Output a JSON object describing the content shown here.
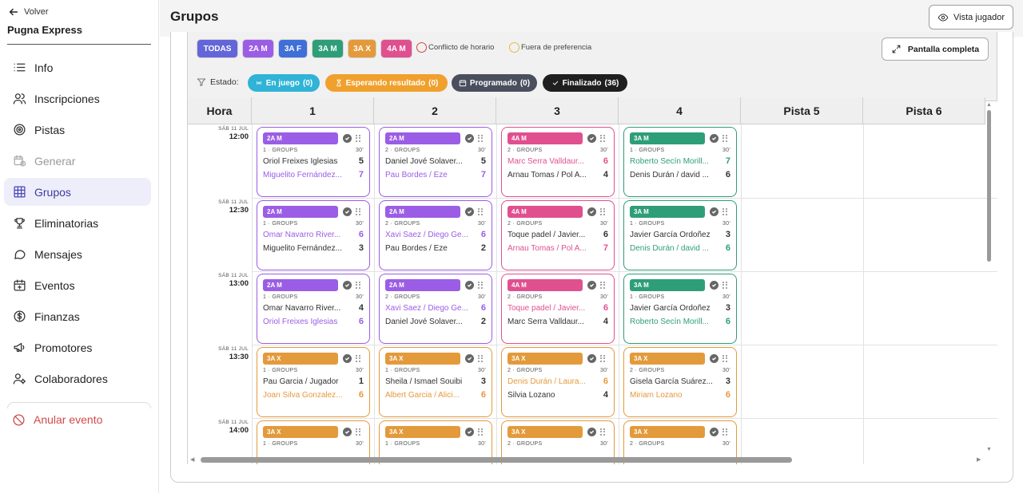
{
  "sidebar": {
    "back_label": "Volver",
    "event_name": "Pugna Express",
    "items": [
      {
        "label": "Info",
        "icon": "list-icon",
        "name": "sidebar-item-info",
        "state": "normal"
      },
      {
        "label": "Inscripciones",
        "icon": "users-icon",
        "name": "sidebar-item-inscripciones",
        "state": "normal"
      },
      {
        "label": "Pistas",
        "icon": "target-icon",
        "name": "sidebar-item-pistas",
        "state": "normal"
      },
      {
        "label": "Generar",
        "icon": "calendar-clock-icon",
        "name": "sidebar-item-generar",
        "state": "disabled"
      },
      {
        "label": "Grupos",
        "icon": "grid-icon",
        "name": "sidebar-item-grupos",
        "state": "active"
      },
      {
        "label": "Eliminatorias",
        "icon": "trophy-icon",
        "name": "sidebar-item-eliminatorias",
        "state": "normal"
      },
      {
        "label": "Mensajes",
        "icon": "chat-icon",
        "name": "sidebar-item-mensajes",
        "state": "normal"
      },
      {
        "label": "Eventos",
        "icon": "calendar-plus-icon",
        "name": "sidebar-item-eventos",
        "state": "normal"
      },
      {
        "label": "Finanzas",
        "icon": "dollar-icon",
        "name": "sidebar-item-finanzas",
        "state": "normal"
      },
      {
        "label": "Promotores",
        "icon": "megaphone-icon",
        "name": "sidebar-item-promotores",
        "state": "normal"
      },
      {
        "label": "Colaboradores",
        "icon": "user-settings-icon",
        "name": "sidebar-item-colaboradores",
        "state": "normal"
      }
    ],
    "cancel_label": "Anular evento"
  },
  "header": {
    "title": "Grupos",
    "view_player_label": "Vista jugador"
  },
  "toolbar": {
    "categories": [
      {
        "label": "TODAS",
        "color": "#6366d9"
      },
      {
        "label": "2A M",
        "color": "#9b5de5"
      },
      {
        "label": "3A F",
        "color": "#3f6fd8"
      },
      {
        "label": "3A M",
        "color": "#2e9e78"
      },
      {
        "label": "3A X",
        "color": "#e39a3b"
      },
      {
        "label": "4A M",
        "color": "#e0508f"
      }
    ],
    "legend_conflict": "Conflicto de horario",
    "legend_conflict_color": "#d64545",
    "legend_preference": "Fuera de preferencia",
    "legend_preference_color": "#e8b64a",
    "fullscreen_label": "Pantalla completa",
    "estado_label": "Estado:",
    "status_filters": [
      {
        "label": "En juego",
        "count": "(0)",
        "bg": "#2fb3d6",
        "fg": "#ffffff",
        "icon": "radio-icon"
      },
      {
        "label": "Esperando resultado",
        "count": "(0)",
        "bg": "#f0a02c",
        "fg": "#ffffff",
        "icon": "hourglass-icon"
      },
      {
        "label": "Programado",
        "count": "(0)",
        "bg": "#4a4f5e",
        "fg": "#ffffff",
        "icon": "calendar-icon"
      },
      {
        "label": "Finalizado",
        "count": "(36)",
        "bg": "#1f1f1f",
        "fg": "#ffffff",
        "icon": "check-icon"
      }
    ]
  },
  "grid": {
    "hour_header": "Hora",
    "courts": [
      "1",
      "2",
      "3",
      "4",
      "Pista 5",
      "Pista 6"
    ],
    "slots": [
      {
        "day": "SÁB 11 JUL",
        "time": "12:00"
      },
      {
        "day": "SÁB 11 JUL",
        "time": "12:30"
      },
      {
        "day": "SÁB 11 JUL",
        "time": "13:00"
      },
      {
        "day": "SÁB 11 JUL",
        "time": "13:30"
      },
      {
        "day": "SÁB 11 JUL",
        "time": "14:00"
      }
    ],
    "matches": [
      {
        "slot": 0,
        "court": 0,
        "category": "2A M",
        "color": "#9b5de5",
        "group": "1 · GROUPS",
        "duration": "30'",
        "t1": "Oriol Freixes Iglesias",
        "s1": "5",
        "t2": "Miguelito Fernández...",
        "s2": "7",
        "winner": 2
      },
      {
        "slot": 0,
        "court": 1,
        "category": "2A M",
        "color": "#9b5de5",
        "group": "2 · GROUPS",
        "duration": "30'",
        "t1": "Daniel Jové Solaver...",
        "s1": "5",
        "t2": "Pau Bordes / Eze",
        "s2": "7",
        "winner": 2
      },
      {
        "slot": 0,
        "court": 2,
        "category": "4A M",
        "color": "#e0508f",
        "group": "2 · GROUPS",
        "duration": "30'",
        "t1": "Marc Serra Valldaur...",
        "s1": "6",
        "t2": "Arnau Tomas / Pol A...",
        "s2": "4",
        "winner": 1
      },
      {
        "slot": 0,
        "court": 3,
        "category": "3A M",
        "color": "#2e9e78",
        "group": "1 · GROUPS",
        "duration": "30'",
        "t1": "Roberto Secín Morill...",
        "s1": "7",
        "t2": "Denis Durán / david ...",
        "s2": "6",
        "winner": 1
      },
      {
        "slot": 1,
        "court": 0,
        "category": "2A M",
        "color": "#9b5de5",
        "group": "1 · GROUPS",
        "duration": "30'",
        "t1": "Omar Navarro River...",
        "s1": "6",
        "t2": "Miguelito Fernández...",
        "s2": "3",
        "winner": 1
      },
      {
        "slot": 1,
        "court": 1,
        "category": "2A M",
        "color": "#9b5de5",
        "group": "2 · GROUPS",
        "duration": "30'",
        "t1": "Xavi Saez / Diego Ge...",
        "s1": "6",
        "t2": "Pau Bordes / Eze",
        "s2": "2",
        "winner": 1
      },
      {
        "slot": 1,
        "court": 2,
        "category": "4A M",
        "color": "#e0508f",
        "group": "2 · GROUPS",
        "duration": "30'",
        "t1": "Toque padel / Javier...",
        "s1": "6",
        "t2": "Arnau Tomas / Pol A...",
        "s2": "7",
        "winner": 2
      },
      {
        "slot": 1,
        "court": 3,
        "category": "3A M",
        "color": "#2e9e78",
        "group": "1 · GROUPS",
        "duration": "30'",
        "t1": "Javier García Ordoñez",
        "s1": "3",
        "t2": "Denis Durán / david ...",
        "s2": "6",
        "winner": 2
      },
      {
        "slot": 2,
        "court": 0,
        "category": "2A M",
        "color": "#9b5de5",
        "group": "1 · GROUPS",
        "duration": "30'",
        "t1": "Omar Navarro River...",
        "s1": "4",
        "t2": "Oriol Freixes Iglesias",
        "s2": "6",
        "winner": 2
      },
      {
        "slot": 2,
        "court": 1,
        "category": "2A M",
        "color": "#9b5de5",
        "group": "2 · GROUPS",
        "duration": "30'",
        "t1": "Xavi Saez / Diego Ge...",
        "s1": "6",
        "t2": "Daniel Jové Solaver...",
        "s2": "2",
        "winner": 1
      },
      {
        "slot": 2,
        "court": 2,
        "category": "4A M",
        "color": "#e0508f",
        "group": "2 · GROUPS",
        "duration": "30'",
        "t1": "Toque padel / Javier...",
        "s1": "6",
        "t2": "Marc Serra Valldaur...",
        "s2": "4",
        "winner": 1
      },
      {
        "slot": 2,
        "court": 3,
        "category": "3A M",
        "color": "#2e9e78",
        "group": "1 · GROUPS",
        "duration": "30'",
        "t1": "Javier García Ordoñez",
        "s1": "3",
        "t2": "Roberto Secín Morill...",
        "s2": "6",
        "winner": 2
      },
      {
        "slot": 3,
        "court": 0,
        "category": "3A X",
        "color": "#e39a3b",
        "group": "1 · GROUPS",
        "duration": "30'",
        "t1": "Pau Garcia / Jugador",
        "s1": "1",
        "t2": "Joan Silva Gonzalez...",
        "s2": "6",
        "winner": 2
      },
      {
        "slot": 3,
        "court": 1,
        "category": "3A X",
        "color": "#e39a3b",
        "group": "1 · GROUPS",
        "duration": "30'",
        "t1": "Sheila / Ismael Souibi",
        "s1": "3",
        "t2": "Albert Garcia / Alici...",
        "s2": "6",
        "winner": 2
      },
      {
        "slot": 3,
        "court": 2,
        "category": "3A X",
        "color": "#e39a3b",
        "group": "2 · GROUPS",
        "duration": "30'",
        "t1": "Denis Durán / Laura...",
        "s1": "6",
        "t2": "Silvia Lozano",
        "s2": "4",
        "winner": 1
      },
      {
        "slot": 3,
        "court": 3,
        "category": "3A X",
        "color": "#e39a3b",
        "group": "2 · GROUPS",
        "duration": "30'",
        "t1": "Gisela García Suárez...",
        "s1": "3",
        "t2": "Miriam Lozano",
        "s2": "6",
        "winner": 2
      },
      {
        "slot": 4,
        "court": 0,
        "category": "3A X",
        "color": "#e39a3b",
        "group": "1 · GROUPS",
        "duration": "30'",
        "t1": "",
        "s1": "",
        "t2": "",
        "s2": "",
        "winner": 0
      },
      {
        "slot": 4,
        "court": 1,
        "category": "3A X",
        "color": "#e39a3b",
        "group": "1 · GROUPS",
        "duration": "30'",
        "t1": "",
        "s1": "",
        "t2": "",
        "s2": "",
        "winner": 0
      },
      {
        "slot": 4,
        "court": 2,
        "category": "3A X",
        "color": "#e39a3b",
        "group": "2 · GROUPS",
        "duration": "30'",
        "t1": "",
        "s1": "",
        "t2": "",
        "s2": "",
        "winner": 0
      },
      {
        "slot": 4,
        "court": 3,
        "category": "3A X",
        "color": "#e39a3b",
        "group": "2 · GROUPS",
        "duration": "30'",
        "t1": "",
        "s1": "",
        "t2": "",
        "s2": "",
        "winner": 0
      }
    ]
  }
}
